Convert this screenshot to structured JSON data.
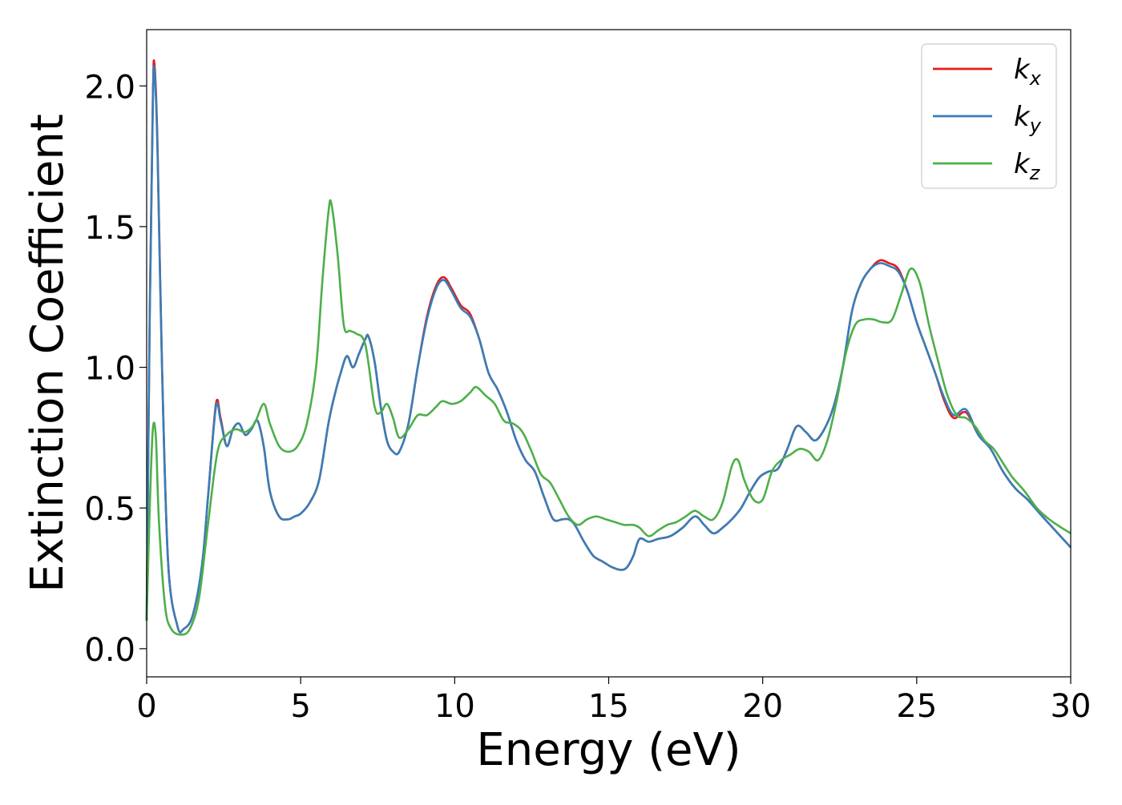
{
  "chart_data": {
    "type": "line",
    "xlabel": "Energy (eV)",
    "ylabel": "Extinction Coefficient",
    "xlim": [
      0,
      30
    ],
    "ylim": [
      -0.1,
      2.2
    ],
    "xticks": [
      "0",
      "5",
      "10",
      "15",
      "20",
      "25",
      "30"
    ],
    "yticks": [
      "0.0",
      "0.5",
      "1.0",
      "1.5",
      "2.0"
    ],
    "grid": false,
    "legend": "top-right",
    "series": [
      {
        "name": "k",
        "sub": "x",
        "color": "#e41a1c",
        "x": [
          0,
          0.1,
          0.2,
          0.25,
          0.35,
          0.5,
          0.7,
          1.0,
          1.2,
          1.5,
          1.8,
          2.0,
          2.25,
          2.4,
          2.6,
          2.8,
          3.0,
          3.2,
          3.4,
          3.6,
          3.8,
          4.0,
          4.3,
          4.6,
          4.8,
          5.0,
          5.3,
          5.6,
          5.9,
          6.1,
          6.3,
          6.5,
          6.7,
          6.9,
          7.1,
          7.2,
          7.4,
          7.6,
          7.8,
          8.0,
          8.2,
          8.5,
          8.8,
          9.1,
          9.4,
          9.65,
          9.9,
          10.2,
          10.5,
          10.8,
          11.1,
          11.4,
          11.7,
          12.0,
          12.3,
          12.6,
          12.9,
          13.2,
          13.5,
          13.7,
          13.9,
          14.2,
          14.5,
          14.8,
          15.1,
          15.4,
          15.6,
          15.8,
          16.0,
          16.3,
          16.6,
          17.0,
          17.4,
          17.8,
          18.1,
          18.4,
          18.7,
          19.0,
          19.3,
          19.6,
          19.9,
          20.2,
          20.5,
          20.8,
          21.1,
          21.4,
          21.7,
          22.0,
          22.3,
          22.6,
          22.9,
          23.2,
          23.5,
          23.8,
          24.1,
          24.4,
          24.7,
          25.0,
          25.3,
          25.6,
          25.9,
          26.2,
          26.6,
          27.0,
          27.4,
          27.8,
          28.2,
          28.6,
          29.0,
          29.5,
          30.0
        ],
        "values": [
          0.1,
          1.2,
          1.95,
          2.08,
          1.8,
          1.0,
          0.3,
          0.08,
          0.07,
          0.12,
          0.3,
          0.55,
          0.87,
          0.82,
          0.72,
          0.78,
          0.8,
          0.76,
          0.78,
          0.81,
          0.72,
          0.56,
          0.47,
          0.46,
          0.47,
          0.48,
          0.52,
          0.6,
          0.8,
          0.9,
          0.98,
          1.04,
          1.0,
          1.05,
          1.1,
          1.11,
          1.02,
          0.86,
          0.74,
          0.7,
          0.7,
          0.8,
          1.0,
          1.18,
          1.29,
          1.32,
          1.28,
          1.22,
          1.19,
          1.1,
          0.98,
          0.92,
          0.84,
          0.74,
          0.67,
          0.63,
          0.54,
          0.46,
          0.46,
          0.46,
          0.44,
          0.38,
          0.33,
          0.31,
          0.29,
          0.28,
          0.29,
          0.33,
          0.39,
          0.38,
          0.39,
          0.4,
          0.43,
          0.47,
          0.44,
          0.41,
          0.43,
          0.46,
          0.5,
          0.56,
          0.61,
          0.63,
          0.64,
          0.71,
          0.79,
          0.77,
          0.74,
          0.78,
          0.86,
          1.0,
          1.2,
          1.3,
          1.35,
          1.38,
          1.37,
          1.35,
          1.27,
          1.16,
          1.07,
          0.98,
          0.88,
          0.82,
          0.84,
          0.76,
          0.71,
          0.63,
          0.57,
          0.53,
          0.48,
          0.42,
          0.36
        ]
      },
      {
        "name": "k",
        "sub": "y",
        "color": "#377eb8",
        "x": [
          0,
          0.1,
          0.2,
          0.25,
          0.35,
          0.5,
          0.7,
          1.0,
          1.2,
          1.5,
          1.8,
          2.0,
          2.25,
          2.4,
          2.6,
          2.8,
          3.0,
          3.2,
          3.4,
          3.6,
          3.8,
          4.0,
          4.3,
          4.6,
          4.8,
          5.0,
          5.3,
          5.6,
          5.9,
          6.1,
          6.3,
          6.5,
          6.7,
          6.9,
          7.1,
          7.2,
          7.4,
          7.6,
          7.8,
          8.0,
          8.2,
          8.5,
          8.8,
          9.1,
          9.4,
          9.65,
          9.9,
          10.2,
          10.5,
          10.8,
          11.1,
          11.4,
          11.7,
          12.0,
          12.3,
          12.6,
          12.9,
          13.2,
          13.5,
          13.7,
          13.9,
          14.2,
          14.5,
          14.8,
          15.1,
          15.4,
          15.6,
          15.8,
          16.0,
          16.3,
          16.6,
          17.0,
          17.4,
          17.8,
          18.1,
          18.4,
          18.7,
          19.0,
          19.3,
          19.6,
          19.9,
          20.2,
          20.5,
          20.8,
          21.1,
          21.4,
          21.7,
          22.0,
          22.3,
          22.6,
          22.9,
          23.2,
          23.5,
          23.8,
          24.1,
          24.4,
          24.7,
          25.0,
          25.3,
          25.6,
          25.9,
          26.2,
          26.6,
          27.0,
          27.4,
          27.8,
          28.2,
          28.6,
          29.0,
          29.5,
          30.0
        ],
        "values": [
          0.1,
          1.18,
          1.93,
          2.06,
          1.78,
          0.99,
          0.3,
          0.08,
          0.07,
          0.12,
          0.3,
          0.55,
          0.86,
          0.81,
          0.72,
          0.78,
          0.8,
          0.76,
          0.78,
          0.81,
          0.72,
          0.56,
          0.47,
          0.46,
          0.47,
          0.48,
          0.52,
          0.6,
          0.8,
          0.9,
          0.98,
          1.04,
          1.0,
          1.05,
          1.1,
          1.11,
          1.02,
          0.86,
          0.74,
          0.7,
          0.7,
          0.8,
          1.0,
          1.17,
          1.28,
          1.31,
          1.27,
          1.21,
          1.18,
          1.1,
          0.98,
          0.92,
          0.84,
          0.74,
          0.67,
          0.63,
          0.54,
          0.46,
          0.46,
          0.46,
          0.44,
          0.38,
          0.33,
          0.31,
          0.29,
          0.28,
          0.29,
          0.33,
          0.39,
          0.38,
          0.39,
          0.4,
          0.43,
          0.47,
          0.44,
          0.41,
          0.43,
          0.46,
          0.5,
          0.56,
          0.61,
          0.63,
          0.64,
          0.71,
          0.79,
          0.77,
          0.74,
          0.78,
          0.86,
          1.0,
          1.2,
          1.3,
          1.35,
          1.37,
          1.36,
          1.34,
          1.27,
          1.16,
          1.07,
          0.98,
          0.89,
          0.83,
          0.85,
          0.76,
          0.71,
          0.63,
          0.57,
          0.53,
          0.48,
          0.42,
          0.36
        ]
      },
      {
        "name": "k",
        "sub": "z",
        "color": "#4daf4a",
        "x": [
          0,
          0.1,
          0.2,
          0.3,
          0.4,
          0.6,
          0.8,
          1.1,
          1.4,
          1.7,
          2.0,
          2.3,
          2.6,
          2.9,
          3.2,
          3.5,
          3.8,
          4.0,
          4.3,
          4.6,
          4.9,
          5.2,
          5.5,
          5.7,
          5.9,
          6.0,
          6.2,
          6.4,
          6.6,
          6.8,
          7.1,
          7.4,
          7.6,
          7.8,
          8.0,
          8.2,
          8.5,
          8.8,
          9.1,
          9.4,
          9.6,
          9.9,
          10.2,
          10.5,
          10.7,
          11.0,
          11.3,
          11.6,
          11.9,
          12.2,
          12.5,
          12.8,
          13.1,
          13.4,
          13.7,
          14.0,
          14.3,
          14.6,
          14.9,
          15.2,
          15.5,
          15.8,
          16.0,
          16.3,
          16.6,
          16.9,
          17.2,
          17.5,
          17.8,
          18.1,
          18.4,
          18.7,
          19.0,
          19.2,
          19.4,
          19.7,
          20.0,
          20.3,
          20.6,
          20.9,
          21.2,
          21.5,
          21.8,
          22.1,
          22.4,
          22.7,
          23.0,
          23.3,
          23.6,
          23.9,
          24.2,
          24.5,
          24.8,
          25.1,
          25.4,
          25.7,
          26.0,
          26.3,
          26.6,
          26.9,
          27.2,
          27.5,
          27.8,
          28.1,
          28.5,
          28.9,
          29.3,
          29.7,
          30.0
        ],
        "values": [
          0.1,
          0.5,
          0.78,
          0.75,
          0.45,
          0.15,
          0.07,
          0.05,
          0.07,
          0.18,
          0.45,
          0.7,
          0.76,
          0.78,
          0.77,
          0.8,
          0.87,
          0.8,
          0.72,
          0.7,
          0.72,
          0.8,
          1.0,
          1.3,
          1.55,
          1.58,
          1.4,
          1.15,
          1.13,
          1.12,
          1.08,
          0.86,
          0.84,
          0.87,
          0.82,
          0.75,
          0.78,
          0.83,
          0.83,
          0.86,
          0.88,
          0.87,
          0.88,
          0.91,
          0.93,
          0.9,
          0.87,
          0.81,
          0.8,
          0.77,
          0.7,
          0.62,
          0.59,
          0.53,
          0.47,
          0.44,
          0.46,
          0.47,
          0.46,
          0.45,
          0.44,
          0.44,
          0.43,
          0.4,
          0.42,
          0.44,
          0.45,
          0.47,
          0.49,
          0.47,
          0.46,
          0.52,
          0.65,
          0.67,
          0.6,
          0.53,
          0.53,
          0.63,
          0.67,
          0.69,
          0.71,
          0.7,
          0.67,
          0.74,
          0.88,
          1.05,
          1.15,
          1.17,
          1.17,
          1.16,
          1.17,
          1.26,
          1.35,
          1.3,
          1.15,
          1.02,
          0.9,
          0.83,
          0.82,
          0.79,
          0.74,
          0.71,
          0.66,
          0.61,
          0.56,
          0.5,
          0.46,
          0.43,
          0.41
        ]
      }
    ]
  }
}
